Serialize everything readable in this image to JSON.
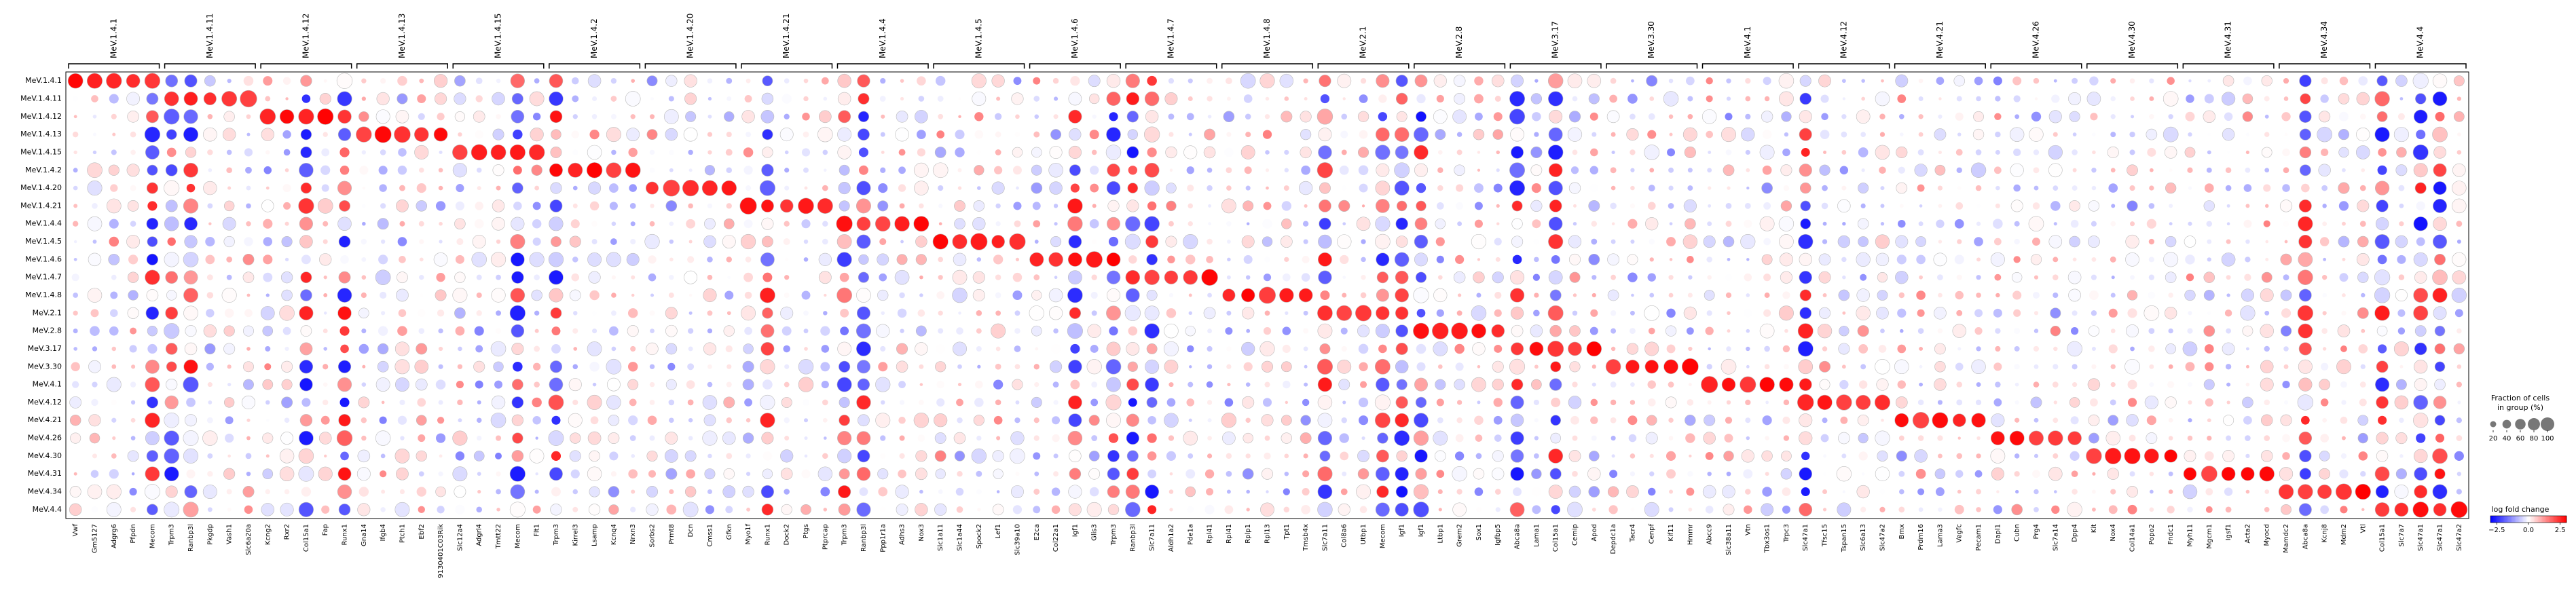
{
  "chart_data": {
    "type": "dotplot",
    "groups": [
      "MeV.1.4.1",
      "MeV.1.4.11",
      "MeV.1.4.12",
      "MeV.1.4.13",
      "MeV.1.4.15",
      "MeV.1.4.2",
      "MeV.1.4.20",
      "MeV.1.4.21",
      "MeV.1.4.4",
      "MeV.1.4.5",
      "MeV.1.4.6",
      "MeV.1.4.7",
      "MeV.1.4.8",
      "MeV.2.1",
      "MeV.2.8",
      "MeV.3.17",
      "MeV.3.30",
      "MeV.4.1",
      "MeV.4.12",
      "MeV.4.21",
      "MeV.4.26",
      "MeV.4.30",
      "MeV.4.31",
      "MeV.4.34",
      "MeV.4.4"
    ],
    "gene_groups": [
      {
        "label": "MeV.1.4.1",
        "genes": [
          "Vwf",
          "Gm5127",
          "Adgrg6",
          "Pfpdn",
          "Mecom"
        ]
      },
      {
        "label": "MeV.1.4.11",
        "genes": [
          "Trpm3",
          "Ranbp3l",
          "Pkgdp",
          "Vash1",
          "Slc6a20a"
        ]
      },
      {
        "label": "MeV.1.4.12",
        "genes": [
          "Kcng2",
          "Rxr2",
          "Col15a1",
          "Fap",
          "Runx1"
        ]
      },
      {
        "label": "MeV.1.4.13",
        "genes": [
          "Gna14",
          "Ifgb4",
          "Ptch1",
          "Ebf2",
          "9130401C03Rik"
        ]
      },
      {
        "label": "MeV.1.4.15",
        "genes": [
          "Slc12a4",
          "Adgrl4",
          "Tmtt22",
          "Mecom",
          "Flt1"
        ]
      },
      {
        "label": "MeV.1.4.2",
        "genes": [
          "Trpm3",
          "Kirrel3",
          "Lsamp",
          "Kcnq4",
          "Nrxn3"
        ]
      },
      {
        "label": "MeV.1.4.20",
        "genes": [
          "Sorbs2",
          "Prmt8",
          "Dcn",
          "Cmss1",
          "Gfkn"
        ]
      },
      {
        "label": "MeV.1.4.21",
        "genes": [
          "Myo1f",
          "Runx1",
          "Dock2",
          "Ptgs",
          "Ptprcap"
        ]
      },
      {
        "label": "MeV.1.4.4",
        "genes": [
          "Trpm3",
          "Ranbp3l",
          "Ppp1r1a",
          "Adhs3",
          "Nox3"
        ]
      },
      {
        "label": "MeV.1.4.5",
        "genes": [
          "Slc1a11",
          "Slc1a44",
          "Spock2",
          "Lef1",
          "Slc39a10"
        ]
      },
      {
        "label": "MeV.1.4.6",
        "genes": [
          "E2ca",
          "Col22a1",
          "Igf1",
          "Glis3",
          "Trpm3"
        ]
      },
      {
        "label": "MeV.1.4.7",
        "genes": [
          "Ranbp3l",
          "Slc7a11",
          "Aldh1a2",
          "Pde1a",
          "Rpl41"
        ]
      },
      {
        "label": "MeV.1.4.8",
        "genes": [
          "Rpl41",
          "Rplp1",
          "Rpl13",
          "Tpt1",
          "Tmsb4x"
        ]
      },
      {
        "label": "MeV.2.1",
        "genes": [
          "Slc7a11",
          "Col8a6",
          "Utbp1",
          "Mecom",
          "Igf1"
        ]
      },
      {
        "label": "MeV.2.8",
        "genes": [
          "Igf1",
          "Ltbp1",
          "Grem2",
          "Sox1",
          "Igfbp5"
        ]
      },
      {
        "label": "MeV.3.17",
        "genes": [
          "Abca8a",
          "Lama1",
          "Col15a1",
          "Cemip",
          "Apod"
        ]
      },
      {
        "label": "MeV.3.30",
        "genes": [
          "Depdc1a",
          "Tacr4",
          "Cenpf",
          "Kif11",
          "Hmmr"
        ]
      },
      {
        "label": "MeV.4.1",
        "genes": [
          "Abcc9",
          "Slc38a11",
          "Vtn",
          "Tbx3os1",
          "Trpc3"
        ]
      },
      {
        "label": "MeV.4.12",
        "genes": [
          "Slc47a1",
          "Tfsc15",
          "Tspan15",
          "Slc6a13",
          "Slc47a2"
        ]
      },
      {
        "label": "MeV.4.21",
        "genes": [
          "Bmx",
          "Prdm16",
          "Lama3",
          "Vegfc",
          "Pecam1"
        ]
      },
      {
        "label": "MeV.4.26",
        "genes": [
          "Dapl1",
          "Cubn",
          "Prg4",
          "Slc7a14",
          "Dpp4"
        ]
      },
      {
        "label": "MeV.4.30",
        "genes": [
          "Kit",
          "Nox4",
          "Col14a1",
          "Popo2",
          "Fndc1"
        ]
      },
      {
        "label": "MeV.4.31",
        "genes": [
          "Myh11",
          "Mgcm1",
          "Igsf1",
          "Acta2",
          "Myocd"
        ]
      },
      {
        "label": "MeV.4.34",
        "genes": [
          "Mamdc2",
          "Abca8a",
          "Kcnj8",
          "Mdm2",
          "Vtl"
        ]
      },
      {
        "label": "MeV.4.4",
        "genes": [
          "Col15a1",
          "Slc7a7",
          "Slc47a1",
          "Slc47a1",
          "Slc47a2"
        ]
      }
    ],
    "size_legend": {
      "title": "Fraction of cells\nin group (%)",
      "values": [
        20,
        40,
        60,
        80,
        100
      ]
    },
    "color_legend": {
      "title": "log fold change",
      "ticks": [
        -2.5,
        0.0,
        2.5
      ],
      "vmin": -3,
      "vmax": 3,
      "colormap": "bwr"
    },
    "grid": false
  }
}
